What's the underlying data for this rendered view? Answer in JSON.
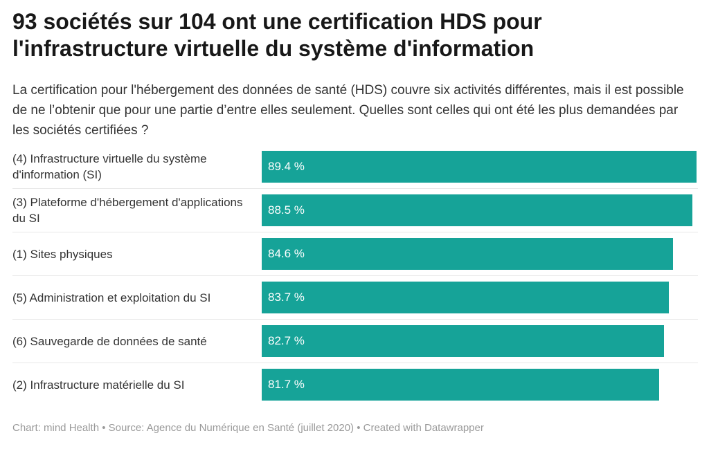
{
  "header": {
    "title": "93 sociétés sur 104 ont une certification HDS pour l'infrastructure virtuelle du système d'information",
    "subtitle": "La certification pour l'hébergement des données de santé (HDS) couvre six activités différentes, mais il est possible de ne l’obtenir que pour une partie d’entre elles seulement. Quelles sont celles qui ont été les plus demandées par les sociétés certifiées ?"
  },
  "chart_data": {
    "type": "bar",
    "orientation": "horizontal",
    "categories": [
      "(4) Infrastructure virtuelle du système d'information (SI)",
      "(3) Plateforme d'hébergement d'applications du SI",
      "(1) Sites physiques",
      "(5) Administration et exploitation du SI",
      "(6) Sauvegarde de données de santé",
      "(2) Infrastructure matérielle du SI"
    ],
    "values": [
      89.4,
      88.5,
      84.6,
      83.7,
      82.7,
      81.7
    ],
    "value_labels": [
      "89.4 %",
      "88.5 %",
      "84.6 %",
      "83.7 %",
      "82.7 %",
      "81.7 %"
    ],
    "xlim": [
      0,
      89.4
    ],
    "bar_color": "#16a398",
    "grid": false
  },
  "footer": {
    "text": "Chart: mind Health • Source: Agence du Numérique en Santé (juillet 2020) • Created with Datawrapper"
  }
}
